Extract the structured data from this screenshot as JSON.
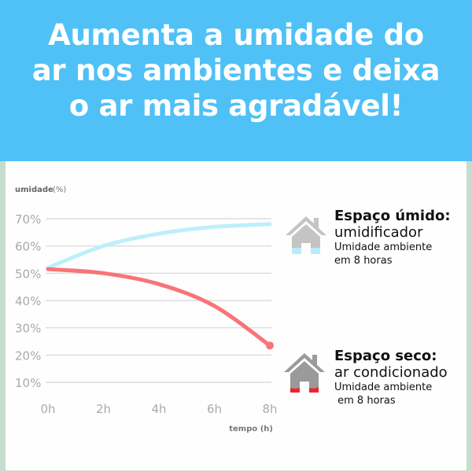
{
  "header": {
    "lines": [
      "Aumenta a umidade do",
      "ar nos ambientes e deixa",
      "o ar mais agradável!"
    ]
  },
  "legend": [
    {
      "title": "Espaço úmido:",
      "subtitle": "umidificador",
      "desc1": "Umidade ambiente",
      "desc2": "em 8 horas",
      "icon": "house-icon",
      "color": "#b9ecfa"
    },
    {
      "title": "Espaço seco:",
      "subtitle": "ar condicionado",
      "desc1": "Umidade ambiente",
      "desc2": " em 8 horas",
      "icon": "house-icon",
      "color": "#f0242e"
    }
  ],
  "chart_data": {
    "type": "line",
    "ylabel_bold": "umidade",
    "ylabel_unit": "(%)",
    "xlabel": "tempo (h)",
    "x": [
      0,
      2,
      4,
      6,
      8
    ],
    "xticks": [
      "0h",
      "2h",
      "4h",
      "6h",
      "8h"
    ],
    "yticks": [
      "70%",
      "60%",
      "50%",
      "40%",
      "30%",
      "20%",
      "10%"
    ],
    "ylim": [
      10,
      70
    ],
    "grid": true,
    "series": [
      {
        "key": "umido",
        "values": [
          52,
          60,
          64.5,
          67,
          68
        ],
        "color": "#bdeffc"
      },
      {
        "key": "seco",
        "values": [
          51.5,
          50,
          46,
          38,
          23.5
        ],
        "color": "#f87478",
        "end_marker": true
      }
    ]
  }
}
